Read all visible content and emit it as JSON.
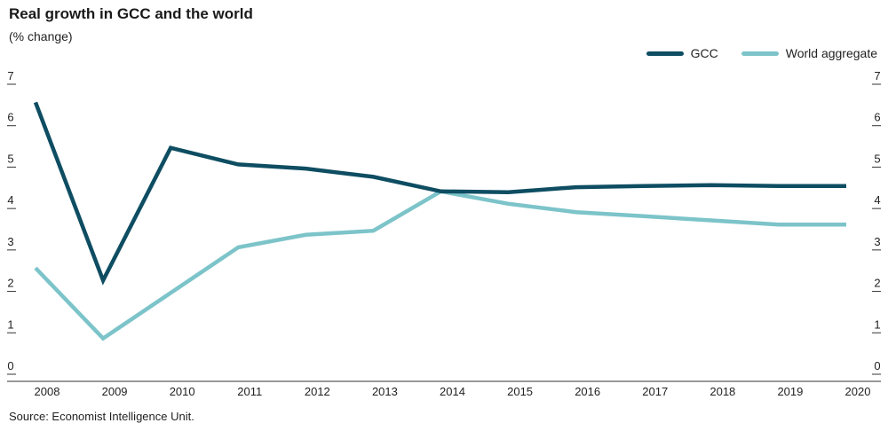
{
  "chart_data": {
    "type": "line",
    "title": "Real growth in GCC and the world",
    "subtitle": "(% change)",
    "source": "Source: Economist Intelligence Unit.",
    "categories": [
      "2008",
      "2009",
      "2010",
      "2011",
      "2012",
      "2013",
      "2014",
      "2015",
      "2016",
      "2017",
      "2018",
      "2019",
      "2020"
    ],
    "ylim": [
      0,
      7
    ],
    "yticks": [
      "0",
      "1",
      "2",
      "3",
      "4",
      "5",
      "6",
      "7"
    ],
    "grid": false,
    "legend_position": "top-right",
    "series": [
      {
        "name": "GCC",
        "color": "#0e4d62",
        "values": [
          6.5,
          2.2,
          5.4,
          5.0,
          4.9,
          4.7,
          4.35,
          4.33,
          4.45,
          4.48,
          4.5,
          4.48,
          4.48
        ]
      },
      {
        "name": "World aggregate",
        "color": "#7cc4c9",
        "values": [
          2.5,
          0.8,
          1.9,
          3.0,
          3.3,
          3.4,
          4.35,
          4.05,
          3.85,
          3.75,
          3.65,
          3.55,
          3.55
        ]
      }
    ]
  }
}
